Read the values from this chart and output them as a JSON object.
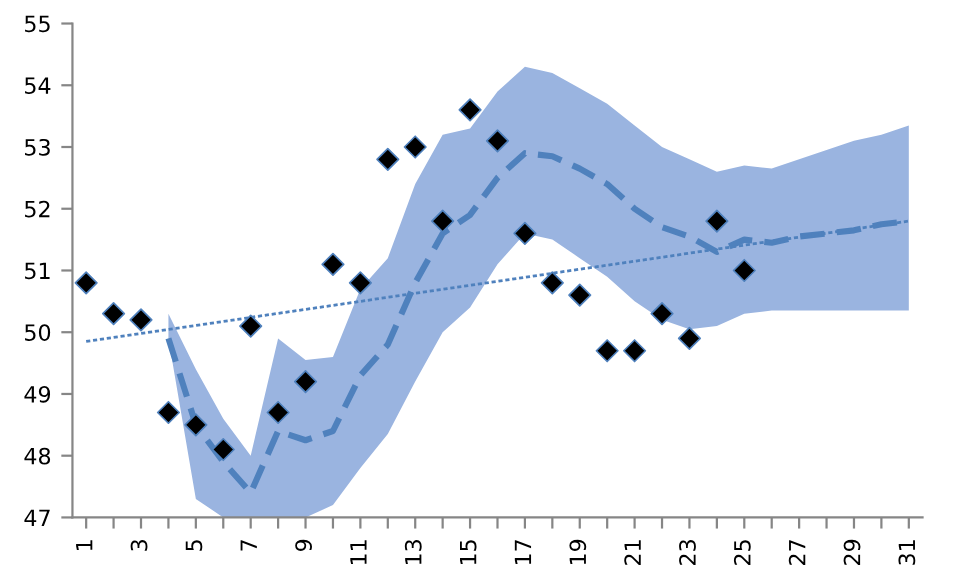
{
  "chart_data": {
    "type": "line",
    "xlim": [
      0.5,
      31.5
    ],
    "ylim": [
      47,
      55
    ],
    "xticks": [
      1,
      {
        "value": 2,
        "label": null
      },
      3,
      {
        "value": 4,
        "label": null
      },
      5,
      {
        "value": 6,
        "label": null
      },
      7,
      {
        "value": 8,
        "label": null
      },
      9,
      {
        "value": 10,
        "label": null
      },
      11,
      {
        "value": 12,
        "label": null
      },
      13,
      {
        "value": 14,
        "label": null
      },
      15,
      {
        "value": 16,
        "label": null
      },
      17,
      {
        "value": 18,
        "label": null
      },
      19,
      {
        "value": 20,
        "label": null
      },
      21,
      {
        "value": 22,
        "label": null
      },
      23,
      {
        "value": 24,
        "label": null
      },
      25,
      {
        "value": 26,
        "label": null
      },
      27,
      {
        "value": 28,
        "label": null
      },
      29,
      {
        "value": 30,
        "label": null
      },
      31
    ],
    "yticks": [
      47,
      48,
      49,
      50,
      51,
      52,
      53,
      54,
      55
    ],
    "grid": false,
    "legend": false,
    "series": [
      {
        "color": "#4f81bd",
        "line_style": "dashed",
        "marker": "none",
        "x": [
          4,
          5,
          6,
          7,
          8,
          9,
          10,
          11,
          12,
          13,
          14,
          15,
          16,
          17,
          18,
          19,
          20,
          21,
          22,
          23,
          24,
          25,
          26,
          27,
          28,
          29,
          30,
          31
        ],
        "values": [
          49.9,
          48.5,
          47.9,
          47.4,
          48.4,
          48.25,
          48.4,
          49.3,
          49.8,
          50.8,
          51.6,
          51.9,
          52.5,
          52.9,
          52.85,
          52.65,
          52.4,
          52.0,
          51.7,
          51.55,
          51.3,
          51.5,
          51.45,
          51.55,
          51.6,
          51.65,
          51.75,
          51.8
        ],
        "lower": [
          49.9,
          47.3,
          47.0,
          47.0,
          47.0,
          47.0,
          47.2,
          47.8,
          48.35,
          49.2,
          50.0,
          50.4,
          51.1,
          51.6,
          51.5,
          51.2,
          50.9,
          50.5,
          50.2,
          50.05,
          50.1,
          50.3,
          50.35,
          50.35,
          50.35,
          50.35,
          50.35,
          50.35
        ],
        "upper": [
          50.3,
          49.4,
          48.6,
          48.0,
          49.9,
          49.55,
          49.6,
          50.7,
          51.2,
          52.4,
          53.2,
          53.3,
          53.9,
          54.3,
          54.2,
          53.95,
          53.7,
          53.35,
          53.0,
          52.8,
          52.6,
          52.7,
          52.65,
          52.8,
          52.95,
          53.1,
          53.2,
          53.35
        ]
      },
      {
        "type": "scatter",
        "color": "#000000",
        "marker": "diamond",
        "x": [
          1,
          2,
          3,
          4,
          5,
          6,
          7,
          8,
          9,
          10,
          11,
          12,
          13,
          14,
          15,
          16,
          17,
          18,
          19,
          20,
          21,
          22,
          23,
          24,
          25
        ],
        "values": [
          50.8,
          50.3,
          50.2,
          48.7,
          48.5,
          48.1,
          50.1,
          48.7,
          49.2,
          51.1,
          50.8,
          52.8,
          53.0,
          51.8,
          53.6,
          53.1,
          51.6,
          50.8,
          50.6,
          49.7,
          49.7,
          50.3,
          49.9,
          51.8,
          51.0
        ]
      },
      {
        "color": "#4f81bd",
        "line_style": "dotted",
        "marker": "none",
        "x": [
          1,
          31
        ],
        "values": [
          49.85,
          51.8
        ]
      }
    ]
  }
}
